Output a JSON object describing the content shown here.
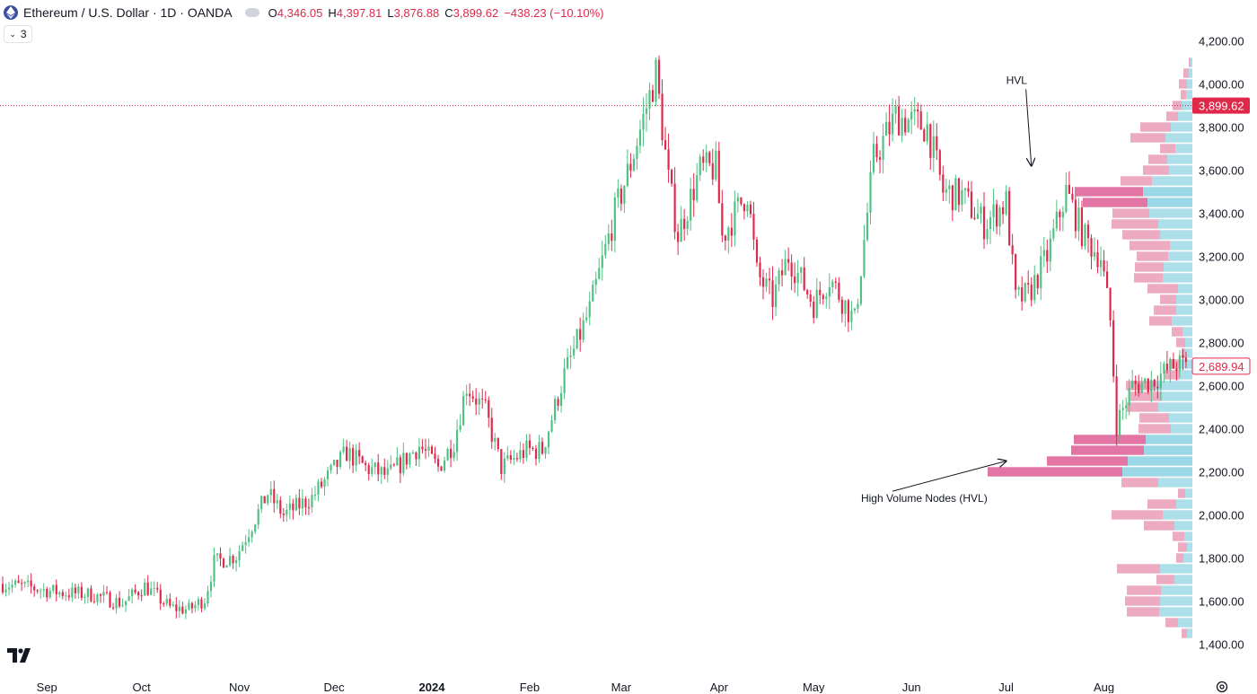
{
  "header": {
    "symbol_title": "Ethereum / U.S. Dollar · 1D · OANDA",
    "ohlc": [
      {
        "key": "O",
        "value": "4,346.05"
      },
      {
        "key": "H",
        "value": "4,397.81"
      },
      {
        "key": "L",
        "value": "3,876.88"
      },
      {
        "key": "C",
        "value": "3,899.62"
      }
    ],
    "change": "−438.23 (−10.10%)",
    "indicators_count": "3"
  },
  "colors": {
    "up": "#4fc283",
    "down": "#e0294a",
    "vp_down": "#eaa2b9",
    "vp_up": "#a3dbe8",
    "vp_down_hvn": "#e0669a",
    "vp_up_hvn": "#8fd4e4",
    "last_price": "#e0294a",
    "axis_text": "#131722",
    "background": "#ffffff"
  },
  "icons": {
    "symbol": "ethereum-logo-icon",
    "collapse": "chevron-down-icon",
    "brand": "tradingview-logo-icon",
    "settings": "gear-icon"
  },
  "chart_data": {
    "type": "candlestick",
    "title": "Ethereum / U.S. Dollar · 1D · OANDA",
    "ylim": [
      1400,
      4400
    ],
    "y_axis_side": "right",
    "y_ticks": [
      "4,200.00",
      "4,000.00",
      "3,800.00",
      "3,600.00",
      "3,400.00",
      "3,200.00",
      "3,000.00",
      "2,800.00",
      "2,600.00",
      "2,400.00",
      "2,200.00",
      "2,000.00",
      "1,800.00",
      "1,600.00",
      "1,400.00"
    ],
    "x_ticks": [
      {
        "label": "Sep",
        "date": "2023-09-01"
      },
      {
        "label": "Oct",
        "date": "2023-10-01"
      },
      {
        "label": "Nov",
        "date": "2023-11-01"
      },
      {
        "label": "Dec",
        "date": "2023-12-01"
      },
      {
        "label": "2024",
        "date": "2024-01-01",
        "bold": true
      },
      {
        "label": "Feb",
        "date": "2024-02-01"
      },
      {
        "label": "Mar",
        "date": "2024-03-01"
      },
      {
        "label": "Apr",
        "date": "2024-04-01"
      },
      {
        "label": "May",
        "date": "2024-05-01"
      },
      {
        "label": "Jun",
        "date": "2024-06-01"
      },
      {
        "label": "Jul",
        "date": "2024-07-01"
      },
      {
        "label": "Aug",
        "date": "2024-08-01"
      }
    ],
    "x_range": [
      "2023-08-16",
      "2024-08-31"
    ],
    "last_price_line": {
      "value": 3899.62,
      "label": "3,899.62"
    },
    "current_price_marker": {
      "value": 2689.94,
      "label": "2,689.94"
    },
    "closes_anchor": [
      [
        "2023-08-17",
        1680
      ],
      [
        "2023-08-28",
        1660
      ],
      [
        "2023-09-05",
        1640
      ],
      [
        "2023-09-15",
        1630
      ],
      [
        "2023-09-25",
        1590
      ],
      [
        "2023-10-02",
        1670
      ],
      [
        "2023-10-10",
        1570
      ],
      [
        "2023-10-16",
        1560
      ],
      [
        "2023-10-21",
        1610
      ],
      [
        "2023-10-24",
        1780
      ],
      [
        "2023-10-31",
        1810
      ],
      [
        "2023-11-10",
        2100
      ],
      [
        "2023-11-15",
        2000
      ],
      [
        "2023-11-24",
        2080
      ],
      [
        "2023-12-05",
        2290
      ],
      [
        "2023-12-11",
        2220
      ],
      [
        "2023-12-18",
        2180
      ],
      [
        "2023-12-28",
        2320
      ],
      [
        "2024-01-03",
        2220
      ],
      [
        "2024-01-08",
        2340
      ],
      [
        "2024-01-12",
        2600
      ],
      [
        "2024-01-18",
        2480
      ],
      [
        "2024-01-23",
        2220
      ],
      [
        "2024-01-31",
        2300
      ],
      [
        "2024-02-05",
        2300
      ],
      [
        "2024-02-12",
        2650
      ],
      [
        "2024-02-20",
        2950
      ],
      [
        "2024-02-28",
        3400
      ],
      [
        "2024-03-04",
        3630
      ],
      [
        "2024-03-12",
        4050
      ],
      [
        "2024-03-16",
        3550
      ],
      [
        "2024-03-19",
        3300
      ],
      [
        "2024-03-26",
        3600
      ],
      [
        "2024-03-31",
        3610
      ],
      [
        "2024-04-02",
        3290
      ],
      [
        "2024-04-10",
        3500
      ],
      [
        "2024-04-13",
        3120
      ],
      [
        "2024-04-18",
        3000
      ],
      [
        "2024-04-23",
        3200
      ],
      [
        "2024-05-01",
        2980
      ],
      [
        "2024-05-06",
        3100
      ],
      [
        "2024-05-14",
        2900
      ],
      [
        "2024-05-20",
        3650
      ],
      [
        "2024-05-27",
        3850
      ],
      [
        "2024-06-06",
        3800
      ],
      [
        "2024-06-11",
        3500
      ],
      [
        "2024-06-17",
        3480
      ],
      [
        "2024-06-24",
        3350
      ],
      [
        "2024-07-01",
        3450
      ],
      [
        "2024-07-04",
        3000
      ],
      [
        "2024-07-08",
        3020
      ],
      [
        "2024-07-14",
        3200
      ],
      [
        "2024-07-20",
        3500
      ],
      [
        "2024-07-26",
        3280
      ],
      [
        "2024-07-31",
        3200
      ],
      [
        "2024-08-03",
        2900
      ],
      [
        "2024-08-05",
        2420
      ],
      [
        "2024-08-10",
        2600
      ],
      [
        "2024-08-16",
        2620
      ],
      [
        "2024-08-24",
        2700
      ],
      [
        "2024-08-27",
        2690
      ]
    ],
    "volume_profile": {
      "row_height": 50,
      "rows": [
        {
          "price": 4100,
          "up": 0.2,
          "down": 0.2
        },
        {
          "price": 4050,
          "up": 0.4,
          "down": 0.6
        },
        {
          "price": 4000,
          "up": 0.6,
          "down": 0.9
        },
        {
          "price": 3950,
          "up": 0.7,
          "down": 0.6
        },
        {
          "price": 3900,
          "up": 1.2,
          "down": 1.0
        },
        {
          "price": 3850,
          "up": 1.6,
          "down": 1.3
        },
        {
          "price": 3800,
          "up": 2.4,
          "down": 3.4
        },
        {
          "price": 3750,
          "up": 3.0,
          "down": 3.9
        },
        {
          "price": 3700,
          "up": 1.9,
          "down": 1.7
        },
        {
          "price": 3650,
          "up": 2.8,
          "down": 2.1
        },
        {
          "price": 3600,
          "up": 2.6,
          "down": 2.9
        },
        {
          "price": 3550,
          "up": 4.5,
          "down": 3.5
        },
        {
          "price": 3500,
          "up": 5.5,
          "down": 7.6
        },
        {
          "price": 3450,
          "up": 5.0,
          "down": 7.2
        },
        {
          "price": 3400,
          "up": 4.8,
          "down": 4.1
        },
        {
          "price": 3350,
          "up": 3.8,
          "down": 5.2
        },
        {
          "price": 3300,
          "up": 3.6,
          "down": 4.2
        },
        {
          "price": 3250,
          "up": 2.5,
          "down": 4.5
        },
        {
          "price": 3200,
          "up": 2.7,
          "down": 3.5
        },
        {
          "price": 3150,
          "up": 3.2,
          "down": 3.2
        },
        {
          "price": 3100,
          "up": 3.3,
          "down": 3.2
        },
        {
          "price": 3050,
          "up": 1.6,
          "down": 3.4
        },
        {
          "price": 3000,
          "up": 1.8,
          "down": 1.8
        },
        {
          "price": 2950,
          "up": 1.8,
          "down": 2.5
        },
        {
          "price": 2900,
          "up": 2.3,
          "down": 2.5
        },
        {
          "price": 2850,
          "up": 1.1,
          "down": 1.2
        },
        {
          "price": 2800,
          "up": 0.8,
          "down": 1.0
        },
        {
          "price": 2750,
          "up": 0.8,
          "down": 0.4
        },
        {
          "price": 2700,
          "up": 1.4,
          "down": 1.2
        },
        {
          "price": 2650,
          "up": 1.4,
          "down": 1.7
        },
        {
          "price": 2600,
          "up": 4.2,
          "down": 3.2
        },
        {
          "price": 2550,
          "up": 3.4,
          "down": 3.5
        },
        {
          "price": 2500,
          "up": 3.8,
          "down": 3.5
        },
        {
          "price": 2450,
          "up": 2.6,
          "down": 3.3
        },
        {
          "price": 2400,
          "up": 2.4,
          "down": 3.6
        },
        {
          "price": 2350,
          "up": 5.2,
          "down": 8.0
        },
        {
          "price": 2300,
          "up": 5.4,
          "down": 8.1
        },
        {
          "price": 2250,
          "up": 7.2,
          "down": 9.0
        },
        {
          "price": 2200,
          "up": 7.8,
          "down": 15.0
        },
        {
          "price": 2150,
          "up": 3.8,
          "down": 4.1
        },
        {
          "price": 2100,
          "up": 0.8,
          "down": 0.8
        },
        {
          "price": 2050,
          "up": 1.8,
          "down": 3.2
        },
        {
          "price": 2000,
          "up": 3.3,
          "down": 5.7
        },
        {
          "price": 1950,
          "up": 2.0,
          "down": 3.4
        },
        {
          "price": 1900,
          "up": 0.9,
          "down": 1.3
        },
        {
          "price": 1850,
          "up": 0.6,
          "down": 1.0
        },
        {
          "price": 1800,
          "up": 1.0,
          "down": 0.8
        },
        {
          "price": 1750,
          "up": 3.6,
          "down": 4.8
        },
        {
          "price": 1700,
          "up": 2.0,
          "down": 2.0
        },
        {
          "price": 1650,
          "up": 3.5,
          "down": 3.8
        },
        {
          "price": 1600,
          "up": 3.6,
          "down": 3.9
        },
        {
          "price": 1550,
          "up": 3.7,
          "down": 3.6
        },
        {
          "price": 1500,
          "up": 1.6,
          "down": 1.4
        },
        {
          "price": 1450,
          "up": 0.6,
          "down": 0.6
        }
      ]
    },
    "annotations": [
      {
        "text": "HVL",
        "at": [
          "2024-07-01",
          4000
        ],
        "arrow_to": [
          "2024-07-09",
          3620
        ]
      },
      {
        "text": "High Volume Nodes (HVL)",
        "at": [
          "2024-05-16",
          2060
        ],
        "arrow_from": [
          "2024-05-26",
          2110
        ],
        "arrow_to": [
          "2024-07-01",
          2250
        ]
      }
    ]
  }
}
